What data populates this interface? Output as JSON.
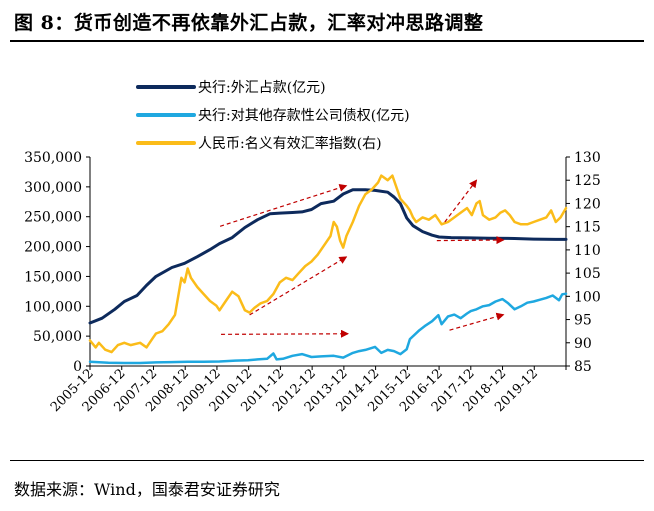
{
  "figure": {
    "title": "图 8：货币创造不再依靠外汇占款，汇率对冲思路调整",
    "source": "数据来源：Wind，国泰君安证券研究"
  },
  "chart_data": {
    "type": "line",
    "legend_position": "top-center",
    "grid": false,
    "x": {
      "tick_labels": [
        "2005-12",
        "2006-12",
        "2007-12",
        "2008-12",
        "2009-12",
        "2010-12",
        "2011-12",
        "2012-12",
        "2013-12",
        "2014-12",
        "2015-12",
        "2016-12",
        "2017-12",
        "2018-12",
        "2019-12"
      ],
      "range": [
        2005.92,
        2020.92
      ]
    },
    "y_left": {
      "range": [
        0,
        350000
      ],
      "ticks": [
        0,
        50000,
        100000,
        150000,
        200000,
        250000,
        300000,
        350000
      ],
      "tick_labels": [
        "0",
        "50,000",
        "100,000",
        "150,000",
        "200,000",
        "250,000",
        "300,000",
        "350,000"
      ]
    },
    "y_right": {
      "range": [
        85,
        130
      ],
      "ticks": [
        85,
        90,
        95,
        100,
        105,
        110,
        115,
        120,
        125,
        130
      ],
      "tick_labels": [
        "85",
        "90",
        "95",
        "100",
        "105",
        "110",
        "115",
        "120",
        "125",
        "130"
      ]
    },
    "series": [
      {
        "name": "央行:外汇占款(亿元)",
        "axis": "left",
        "color": "#0d2a5c",
        "points": [
          [
            2005.92,
            72000
          ],
          [
            2006.3,
            80000
          ],
          [
            2006.7,
            95000
          ],
          [
            2007.0,
            108000
          ],
          [
            2007.4,
            118000
          ],
          [
            2007.7,
            135000
          ],
          [
            2008.0,
            150000
          ],
          [
            2008.5,
            165000
          ],
          [
            2008.9,
            172000
          ],
          [
            2009.3,
            183000
          ],
          [
            2009.7,
            195000
          ],
          [
            2010.0,
            205000
          ],
          [
            2010.4,
            215000
          ],
          [
            2010.8,
            232000
          ],
          [
            2011.2,
            245000
          ],
          [
            2011.6,
            255000
          ],
          [
            2011.9,
            256000
          ],
          [
            2012.3,
            257000
          ],
          [
            2012.6,
            258000
          ],
          [
            2012.9,
            262000
          ],
          [
            2013.2,
            272000
          ],
          [
            2013.6,
            276000
          ],
          [
            2013.9,
            288000
          ],
          [
            2014.2,
            295000
          ],
          [
            2014.6,
            295000
          ],
          [
            2014.9,
            294000
          ],
          [
            2015.3,
            291000
          ],
          [
            2015.5,
            283000
          ],
          [
            2015.7,
            272000
          ],
          [
            2015.9,
            248000
          ],
          [
            2016.1,
            235000
          ],
          [
            2016.4,
            225000
          ],
          [
            2016.7,
            219000
          ],
          [
            2016.92,
            216000
          ],
          [
            2017.3,
            215000
          ],
          [
            2017.9,
            214500
          ],
          [
            2018.5,
            214000
          ],
          [
            2019.3,
            213500
          ],
          [
            2019.9,
            212500
          ],
          [
            2020.6,
            212000
          ],
          [
            2020.92,
            212000
          ]
        ]
      },
      {
        "name": "央行:对其他存款性公司债权(亿元)",
        "axis": "left",
        "color": "#1fa8e0",
        "points": [
          [
            2005.92,
            7000
          ],
          [
            2006.5,
            5500
          ],
          [
            2007.0,
            5000
          ],
          [
            2007.5,
            5000
          ],
          [
            2008.0,
            6000
          ],
          [
            2008.5,
            6500
          ],
          [
            2009.0,
            7000
          ],
          [
            2009.5,
            7000
          ],
          [
            2010.0,
            7500
          ],
          [
            2010.5,
            9000
          ],
          [
            2010.9,
            9500
          ],
          [
            2011.2,
            11000
          ],
          [
            2011.5,
            12000
          ],
          [
            2011.7,
            21000
          ],
          [
            2011.8,
            11000
          ],
          [
            2012.0,
            12000
          ],
          [
            2012.3,
            17000
          ],
          [
            2012.6,
            20000
          ],
          [
            2012.9,
            15000
          ],
          [
            2013.2,
            16000
          ],
          [
            2013.6,
            17000
          ],
          [
            2013.9,
            14000
          ],
          [
            2014.2,
            22000
          ],
          [
            2014.4,
            25000
          ],
          [
            2014.6,
            27000
          ],
          [
            2014.9,
            32000
          ],
          [
            2015.1,
            22000
          ],
          [
            2015.3,
            27000
          ],
          [
            2015.5,
            25000
          ],
          [
            2015.7,
            20000
          ],
          [
            2015.9,
            28000
          ],
          [
            2016.0,
            45000
          ],
          [
            2016.3,
            60000
          ],
          [
            2016.5,
            68000
          ],
          [
            2016.7,
            75000
          ],
          [
            2016.9,
            85000
          ],
          [
            2017.0,
            70000
          ],
          [
            2017.2,
            83000
          ],
          [
            2017.4,
            86000
          ],
          [
            2017.6,
            80000
          ],
          [
            2017.8,
            88000
          ],
          [
            2017.92,
            92000
          ],
          [
            2018.1,
            95000
          ],
          [
            2018.3,
            100000
          ],
          [
            2018.5,
            102000
          ],
          [
            2018.7,
            108000
          ],
          [
            2018.92,
            112000
          ],
          [
            2019.1,
            105000
          ],
          [
            2019.3,
            95000
          ],
          [
            2019.5,
            100000
          ],
          [
            2019.7,
            106000
          ],
          [
            2019.9,
            108000
          ],
          [
            2020.1,
            111000
          ],
          [
            2020.3,
            114000
          ],
          [
            2020.5,
            118000
          ],
          [
            2020.7,
            110000
          ],
          [
            2020.8,
            120000
          ],
          [
            2020.92,
            121000
          ]
        ]
      },
      {
        "name": "人民币:名义有效汇率指数(右)",
        "axis": "right",
        "color": "#fbbc19",
        "points": [
          [
            2005.92,
            90.5
          ],
          [
            2006.1,
            89.0
          ],
          [
            2006.2,
            90.0
          ],
          [
            2006.4,
            88.5
          ],
          [
            2006.6,
            88.0
          ],
          [
            2006.8,
            89.5
          ],
          [
            2007.0,
            90.0
          ],
          [
            2007.2,
            89.5
          ],
          [
            2007.5,
            90.0
          ],
          [
            2007.7,
            89.0
          ],
          [
            2007.9,
            91.0
          ],
          [
            2008.0,
            92.0
          ],
          [
            2008.2,
            92.5
          ],
          [
            2008.4,
            94.0
          ],
          [
            2008.6,
            96.0
          ],
          [
            2008.8,
            104.0
          ],
          [
            2008.9,
            103.0
          ],
          [
            2009.0,
            106.0
          ],
          [
            2009.1,
            104.0
          ],
          [
            2009.3,
            102.0
          ],
          [
            2009.5,
            100.5
          ],
          [
            2009.7,
            99.0
          ],
          [
            2009.9,
            98.0
          ],
          [
            2010.0,
            97.0
          ],
          [
            2010.2,
            99.0
          ],
          [
            2010.4,
            101.0
          ],
          [
            2010.6,
            100.0
          ],
          [
            2010.8,
            97.0
          ],
          [
            2010.95,
            96.5
          ],
          [
            2011.1,
            97.5
          ],
          [
            2011.3,
            98.5
          ],
          [
            2011.5,
            99.0
          ],
          [
            2011.7,
            100.5
          ],
          [
            2011.9,
            103.0
          ],
          [
            2012.1,
            104.0
          ],
          [
            2012.3,
            103.5
          ],
          [
            2012.5,
            105.0
          ],
          [
            2012.7,
            106.5
          ],
          [
            2012.9,
            107.5
          ],
          [
            2013.1,
            109.0
          ],
          [
            2013.3,
            111.0
          ],
          [
            2013.5,
            113.0
          ],
          [
            2013.6,
            116.0
          ],
          [
            2013.7,
            115.0
          ],
          [
            2013.8,
            112.0
          ],
          [
            2013.9,
            110.5
          ],
          [
            2014.0,
            113.0
          ],
          [
            2014.2,
            116.0
          ],
          [
            2014.4,
            119.5
          ],
          [
            2014.6,
            122.0
          ],
          [
            2014.8,
            123.0
          ],
          [
            2015.0,
            124.5
          ],
          [
            2015.1,
            126.0
          ],
          [
            2015.3,
            125.0
          ],
          [
            2015.45,
            126.0
          ],
          [
            2015.55,
            124.0
          ],
          [
            2015.7,
            121.0
          ],
          [
            2015.9,
            119.5
          ],
          [
            2016.0,
            118.5
          ],
          [
            2016.1,
            117.0
          ],
          [
            2016.2,
            116.0
          ],
          [
            2016.4,
            117.0
          ],
          [
            2016.6,
            116.5
          ],
          [
            2016.8,
            117.5
          ],
          [
            2017.0,
            115.5
          ],
          [
            2017.2,
            116.0
          ],
          [
            2017.4,
            117.0
          ],
          [
            2017.6,
            118.0
          ],
          [
            2017.8,
            119.0
          ],
          [
            2017.95,
            117.5
          ],
          [
            2018.1,
            120.0
          ],
          [
            2018.2,
            120.5
          ],
          [
            2018.3,
            117.5
          ],
          [
            2018.4,
            117.0
          ],
          [
            2018.5,
            116.5
          ],
          [
            2018.7,
            117.0
          ],
          [
            2018.85,
            118.0
          ],
          [
            2019.0,
            118.5
          ],
          [
            2019.15,
            117.5
          ],
          [
            2019.3,
            116.0
          ],
          [
            2019.5,
            115.5
          ],
          [
            2019.7,
            115.5
          ],
          [
            2019.9,
            116.0
          ],
          [
            2020.1,
            116.5
          ],
          [
            2020.3,
            117.0
          ],
          [
            2020.45,
            118.5
          ],
          [
            2020.6,
            116.0
          ],
          [
            2020.75,
            117.0
          ],
          [
            2020.92,
            119.0
          ]
        ]
      }
    ],
    "annotations": {
      "trend_arrows": [
        {
          "axis": "left",
          "from": [
            2010.02,
            234000
          ],
          "to": [
            2014.0,
            302000
          ]
        },
        {
          "axis": "left",
          "from": [
            2010.05,
            53000
          ],
          "to": [
            2014.05,
            54000
          ]
        },
        {
          "axis": "right",
          "from": [
            2010.95,
            96.0
          ],
          "to": [
            2014.0,
            108.5
          ]
        },
        {
          "axis": "right",
          "from": [
            2017.1,
            116.0
          ],
          "to": [
            2018.1,
            125.0
          ]
        },
        {
          "axis": "left",
          "from": [
            2016.85,
            210000
          ],
          "to": [
            2018.95,
            211000
          ]
        },
        {
          "axis": "left",
          "from": [
            2017.25,
            60000
          ],
          "to": [
            2018.95,
            86000
          ]
        }
      ],
      "arrow_color": "#c00000"
    }
  }
}
